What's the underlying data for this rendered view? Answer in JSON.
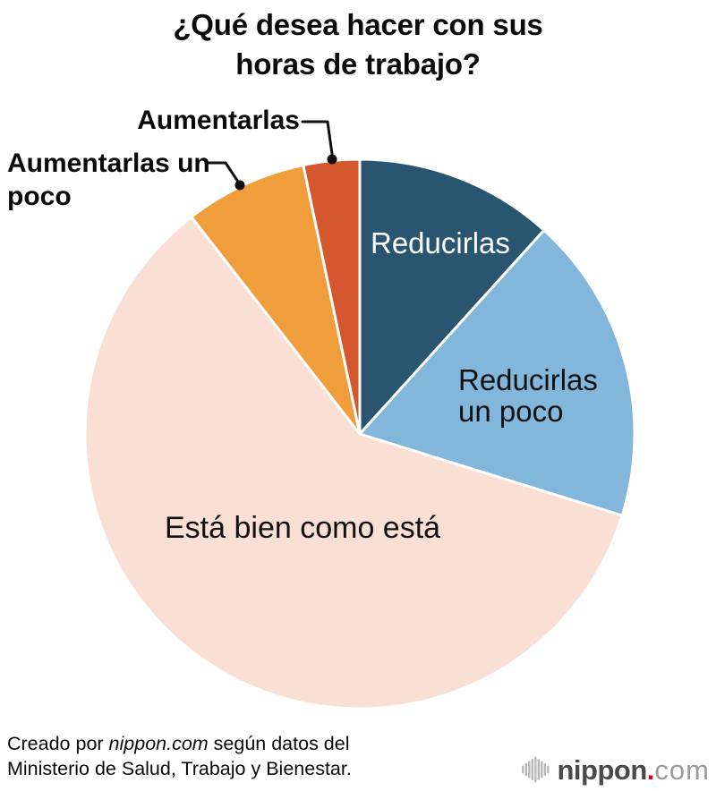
{
  "title": "¿Qué desea hacer con sus\nhoras de trabajo?",
  "chart_data": {
    "type": "pie",
    "title": "¿Qué desea hacer con sus horas de trabajo?",
    "start_angle_deg": 0,
    "direction": "clockwise",
    "values_shown_on_chart": false,
    "values_are_estimated_percent": true,
    "slices": [
      {
        "label": "Reducirlas",
        "value": 11.7,
        "color": "#2A5571",
        "label_placement": "inside",
        "label_color": "#ffffff"
      },
      {
        "label": "Reducirlas un poco",
        "value": 18.1,
        "color": "#82B6DA",
        "label_placement": "inside",
        "label_color": "#111111"
      },
      {
        "label": "Está bien como está",
        "value": 59.7,
        "color": "#FADFD5",
        "label_placement": "inside",
        "label_color": "#111111"
      },
      {
        "label": "Aumentarlas un poco",
        "value": 7.2,
        "color": "#F09D3B",
        "label_placement": "callout",
        "label_color": "#0a0a0a"
      },
      {
        "label": "Aumentarlas",
        "value": 3.3,
        "color": "#D4572E",
        "label_placement": "callout",
        "label_color": "#0a0a0a"
      }
    ],
    "stroke_color": "#ffffff",
    "callout_line_color": "#111111"
  },
  "footer": {
    "credit_prefix": "Creado por ",
    "credit_source": "nippon.com",
    "credit_suffix": " según datos del Ministerio de Salud, Trabajo y Bienestar."
  },
  "logo": {
    "icon": "soundwave-bars-icon",
    "brand": "nippon",
    "dot": ".",
    "tld": "com",
    "brand_color": "#4a4a4a",
    "dot_color": "#e60012",
    "tld_color": "#9b9b9b"
  }
}
